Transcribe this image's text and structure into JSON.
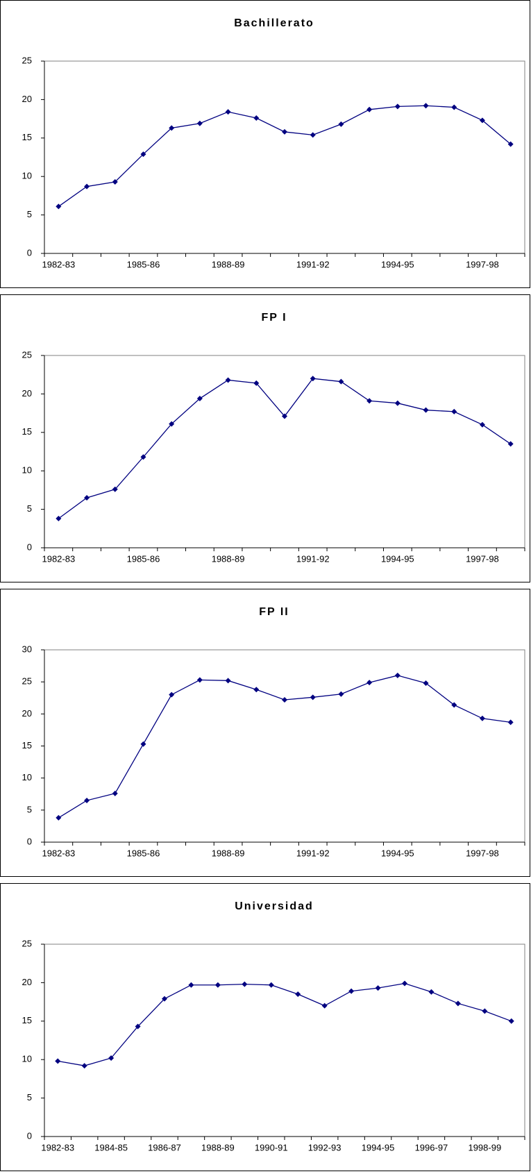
{
  "chart_data": [
    {
      "type": "line",
      "title": "Bachillerato",
      "categories": [
        "1982-83",
        null,
        null,
        "1985-86",
        null,
        null,
        "1988-89",
        null,
        null,
        "1991-92",
        null,
        null,
        "1994-95",
        null,
        null,
        "1997-98",
        null
      ],
      "series": [
        {
          "color": "#000080",
          "values": [
            6.1,
            8.7,
            9.3,
            12.9,
            16.3,
            16.9,
            18.4,
            17.6,
            15.8,
            15.4,
            16.8,
            18.7,
            19.1,
            19.2,
            19.0,
            17.3,
            14.2
          ]
        }
      ],
      "ylim": [
        0,
        25
      ],
      "yticks": [
        0,
        5,
        10,
        15,
        20,
        25
      ]
    },
    {
      "type": "line",
      "title": "FP I",
      "categories": [
        "1982-83",
        null,
        null,
        "1985-86",
        null,
        null,
        "1988-89",
        null,
        null,
        "1991-92",
        null,
        null,
        "1994-95",
        null,
        null,
        "1997-98",
        null
      ],
      "series": [
        {
          "color": "#000080",
          "values": [
            3.8,
            6.5,
            7.6,
            11.8,
            16.1,
            19.4,
            21.8,
            21.4,
            17.1,
            22.0,
            21.6,
            19.1,
            18.8,
            17.9,
            17.7,
            16.0,
            13.5
          ]
        }
      ],
      "ylim": [
        0,
        25
      ],
      "yticks": [
        0,
        5,
        10,
        15,
        20,
        25
      ]
    },
    {
      "type": "line",
      "title": "FP II",
      "categories": [
        "1982-83",
        null,
        null,
        "1985-86",
        null,
        null,
        "1988-89",
        null,
        null,
        "1991-92",
        null,
        null,
        "1994-95",
        null,
        null,
        "1997-98",
        null
      ],
      "series": [
        {
          "color": "#000080",
          "values": [
            3.8,
            6.5,
            7.6,
            15.3,
            23.0,
            25.3,
            25.2,
            23.8,
            22.2,
            22.6,
            23.1,
            24.9,
            26.0,
            24.8,
            21.4,
            19.3,
            18.7
          ]
        }
      ],
      "ylim": [
        0,
        30
      ],
      "yticks": [
        0,
        5,
        10,
        15,
        20,
        25,
        30
      ]
    },
    {
      "type": "line",
      "title": "Universidad",
      "categories": [
        "1982-83",
        null,
        "1984-85",
        null,
        "1986-87",
        null,
        "1988-89",
        null,
        "1990-91",
        null,
        "1992-93",
        null,
        "1994-95",
        null,
        "1996-97",
        null,
        "1998-99",
        null
      ],
      "series": [
        {
          "color": "#000080",
          "values": [
            9.8,
            9.2,
            10.2,
            14.3,
            17.9,
            19.7,
            19.7,
            19.8,
            19.7,
            18.5,
            17.0,
            18.9,
            19.3,
            19.9,
            18.8,
            17.3,
            16.3,
            15.0
          ]
        }
      ],
      "ylim": [
        0,
        25
      ],
      "yticks": [
        0,
        5,
        10,
        15,
        20,
        25
      ]
    }
  ]
}
